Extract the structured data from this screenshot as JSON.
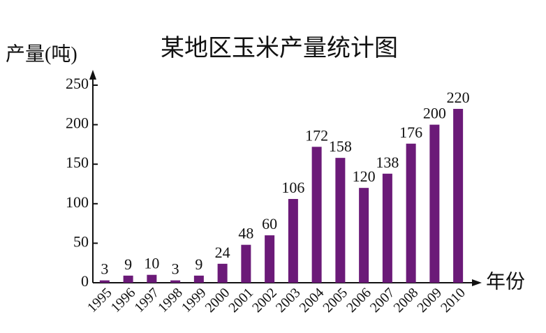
{
  "chart_data": {
    "type": "bar",
    "title": "某地区玉米产量统计图",
    "y_label": "产量(吨)",
    "x_label": "年份",
    "categories": [
      "1995",
      "1996",
      "1997",
      "1998",
      "1999",
      "2000",
      "2001",
      "2002",
      "2003",
      "2004",
      "2005",
      "2006",
      "2007",
      "2008",
      "2009",
      "2010"
    ],
    "values": [
      3,
      9,
      10,
      3,
      9,
      24,
      48,
      60,
      106,
      172,
      158,
      120,
      138,
      176,
      200,
      220
    ],
    "color": "#6b1a78",
    "ylim": [
      0,
      250
    ],
    "yticks": [
      0,
      50,
      100,
      150,
      200,
      250
    ],
    "grid": false
  }
}
